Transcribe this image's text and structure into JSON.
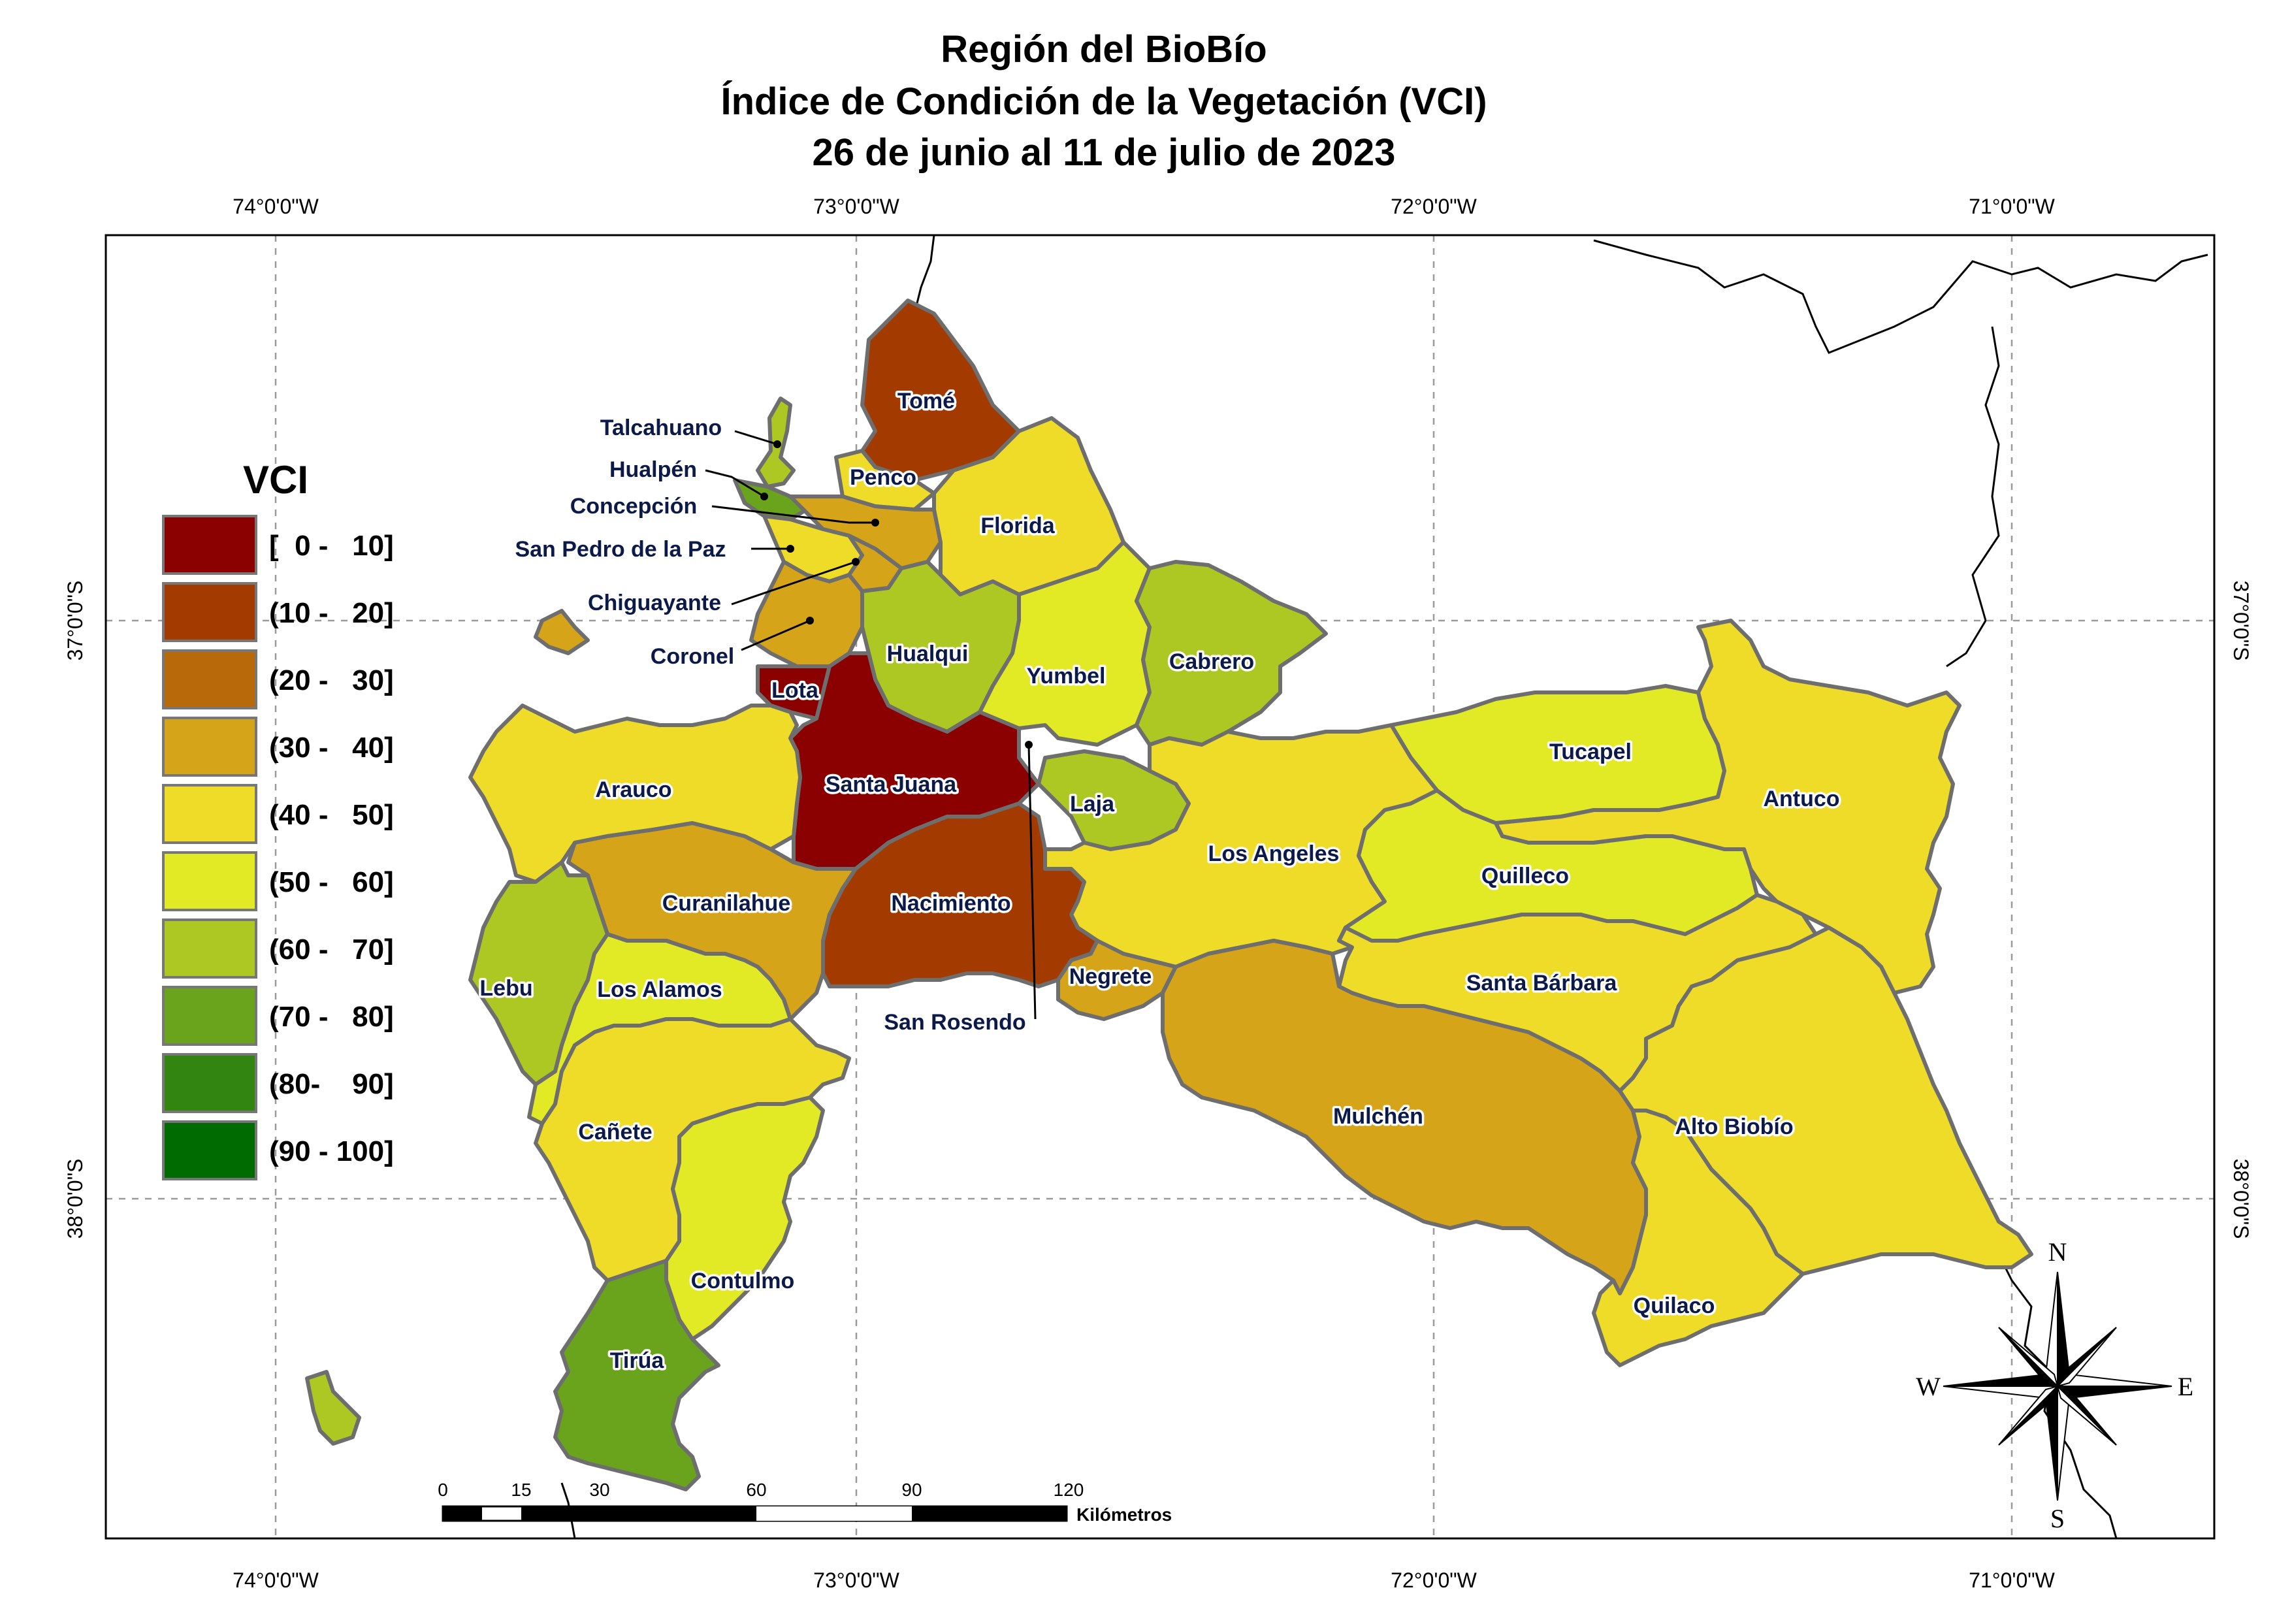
{
  "title": {
    "line1": "Región del BioBío",
    "line2": "Índice de Condición de la Vegetación (VCI)",
    "line3": "26 de junio al 11 de julio de 2023"
  },
  "graticule": {
    "lon_top": [
      "74°0'0\"W",
      "73°0'0\"W",
      "72°0'0\"W",
      "71°0'0\"W"
    ],
    "lon_bottom": [
      "74°0'0\"W",
      "73°0'0\"W",
      "72°0'0\"W",
      "71°0'0\"W"
    ],
    "lat_left": [
      "37°0'0\"S",
      "38°0'0\"S"
    ],
    "lat_right": [
      "37°0'0\"S",
      "38°0'0\"S"
    ]
  },
  "legend": {
    "title": "VCI",
    "classes": [
      {
        "label": "[  0 -   10]",
        "color": "#8b0000"
      },
      {
        "label": "(10 -   20]",
        "color": "#a33a00"
      },
      {
        "label": "(20 -   30]",
        "color": "#b86a0a"
      },
      {
        "label": "(30 -   40]",
        "color": "#d6a418"
      },
      {
        "label": "(40 -   50]",
        "color": "#efdc28"
      },
      {
        "label": "(50 -   60]",
        "color": "#e1ea24"
      },
      {
        "label": "(60 -   70]",
        "color": "#adc822"
      },
      {
        "label": "(70 -   80]",
        "color": "#6aa31c"
      },
      {
        "label": "(80-    90]",
        "color": "#338512"
      },
      {
        "label": "(90 - 100]",
        "color": "#006b00"
      }
    ]
  },
  "comunas": {
    "tome": "Tomé",
    "talcahuano": "Talcahuano",
    "hualpen": "Hualpén",
    "penco": "Penco",
    "concepcion": "Concepción",
    "florida": "Florida",
    "san_pedro": "San Pedro de la Paz",
    "chiguayante": "Chiguayante",
    "coronel": "Coronel",
    "hualqui": "Hualqui",
    "yumbel": "Yumbel",
    "cabrero": "Cabrero",
    "lota": "Lota",
    "santa_juana": "Santa Juana",
    "tucapel": "Tucapel",
    "arauco": "Arauco",
    "laja": "Laja",
    "antuco": "Antuco",
    "los_angeles": "Los Angeles",
    "quilleco": "Quilleco",
    "curanilahue": "Curanilahue",
    "nacimiento": "Nacimiento",
    "negrete": "Negrete",
    "santa_barbara": "Santa Bárbara",
    "lebu": "Lebu",
    "los_alamos": "Los Alamos",
    "san_rosendo": "San Rosendo",
    "mulchen": "Mulchén",
    "alto_biobio": "Alto Biobío",
    "canete": "Cañete",
    "contulmo": "Contulmo",
    "quilaco": "Quilaco",
    "tirua": "Tirúa"
  },
  "scale_bar": {
    "ticks": [
      "0",
      "15",
      "30",
      "60",
      "90",
      "120"
    ],
    "unit": "Kilómetros"
  },
  "north_arrow": {
    "n": "N",
    "s": "S",
    "e": "E",
    "w": "W"
  }
}
